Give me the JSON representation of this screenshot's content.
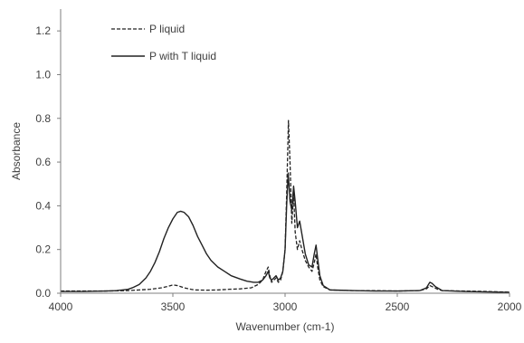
{
  "chart_data": {
    "type": "line",
    "title": "",
    "xlabel": "Wavenumber (cm-1)",
    "ylabel": "Absorbance",
    "xlim": [
      4000,
      2000
    ],
    "ylim": [
      0,
      1.3
    ],
    "x_reversed": true,
    "x_ticks": [
      4000,
      3500,
      3000,
      2500,
      2000
    ],
    "x_tick_labels": [
      "4000",
      "3500",
      "3000",
      "2500",
      "2000"
    ],
    "y_ticks": [
      0.0,
      0.2,
      0.4,
      0.6,
      0.8,
      1.0,
      1.2
    ],
    "y_tick_labels": [
      "0.0",
      "0.2",
      "0.4",
      "0.6",
      "0.8",
      "1.0",
      "1.2"
    ],
    "grid": false,
    "legend_position": "top-left",
    "series": [
      {
        "name": "P liquid",
        "style": "dashed",
        "color": "#222222",
        "points": [
          [
            4000,
            0.01
          ],
          [
            3900,
            0.01
          ],
          [
            3800,
            0.01
          ],
          [
            3700,
            0.012
          ],
          [
            3650,
            0.015
          ],
          [
            3600,
            0.018
          ],
          [
            3550,
            0.025
          ],
          [
            3520,
            0.032
          ],
          [
            3500,
            0.038
          ],
          [
            3480,
            0.035
          ],
          [
            3450,
            0.025
          ],
          [
            3420,
            0.018
          ],
          [
            3400,
            0.015
          ],
          [
            3350,
            0.014
          ],
          [
            3300,
            0.015
          ],
          [
            3250,
            0.018
          ],
          [
            3200,
            0.02
          ],
          [
            3150,
            0.025
          ],
          [
            3120,
            0.04
          ],
          [
            3100,
            0.06
          ],
          [
            3085,
            0.1
          ],
          [
            3075,
            0.12
          ],
          [
            3068,
            0.08
          ],
          [
            3060,
            0.05
          ],
          [
            3050,
            0.06
          ],
          [
            3040,
            0.07
          ],
          [
            3030,
            0.05
          ],
          [
            3020,
            0.06
          ],
          [
            3010,
            0.1
          ],
          [
            3000,
            0.2
          ],
          [
            2993,
            0.45
          ],
          [
            2985,
            0.79
          ],
          [
            2978,
            0.6
          ],
          [
            2970,
            0.32
          ],
          [
            2962,
            0.46
          ],
          [
            2955,
            0.28
          ],
          [
            2945,
            0.2
          ],
          [
            2935,
            0.24
          ],
          [
            2925,
            0.2
          ],
          [
            2910,
            0.15
          ],
          [
            2895,
            0.12
          ],
          [
            2880,
            0.1
          ],
          [
            2870,
            0.14
          ],
          [
            2862,
            0.18
          ],
          [
            2855,
            0.12
          ],
          [
            2845,
            0.06
          ],
          [
            2830,
            0.03
          ],
          [
            2800,
            0.015
          ],
          [
            2700,
            0.012
          ],
          [
            2600,
            0.012
          ],
          [
            2500,
            0.01
          ],
          [
            2400,
            0.012
          ],
          [
            2370,
            0.02
          ],
          [
            2355,
            0.035
          ],
          [
            2340,
            0.028
          ],
          [
            2320,
            0.018
          ],
          [
            2300,
            0.012
          ],
          [
            2200,
            0.01
          ],
          [
            2100,
            0.008
          ],
          [
            2000,
            0.005
          ]
        ]
      },
      {
        "name": "P with T liquid",
        "style": "solid",
        "color": "#222222",
        "points": [
          [
            4000,
            0.008
          ],
          [
            3900,
            0.008
          ],
          [
            3800,
            0.01
          ],
          [
            3750,
            0.012
          ],
          [
            3700,
            0.018
          ],
          [
            3680,
            0.025
          ],
          [
            3650,
            0.04
          ],
          [
            3620,
            0.07
          ],
          [
            3600,
            0.1
          ],
          [
            3580,
            0.14
          ],
          [
            3560,
            0.19
          ],
          [
            3540,
            0.25
          ],
          [
            3520,
            0.3
          ],
          [
            3500,
            0.34
          ],
          [
            3480,
            0.37
          ],
          [
            3465,
            0.375
          ],
          [
            3450,
            0.37
          ],
          [
            3430,
            0.35
          ],
          [
            3410,
            0.31
          ],
          [
            3390,
            0.26
          ],
          [
            3370,
            0.22
          ],
          [
            3350,
            0.18
          ],
          [
            3330,
            0.15
          ],
          [
            3300,
            0.12
          ],
          [
            3270,
            0.1
          ],
          [
            3240,
            0.08
          ],
          [
            3200,
            0.065
          ],
          [
            3170,
            0.055
          ],
          [
            3140,
            0.05
          ],
          [
            3120,
            0.05
          ],
          [
            3100,
            0.06
          ],
          [
            3085,
            0.08
          ],
          [
            3075,
            0.1
          ],
          [
            3068,
            0.07
          ],
          [
            3060,
            0.06
          ],
          [
            3050,
            0.07
          ],
          [
            3040,
            0.08
          ],
          [
            3030,
            0.06
          ],
          [
            3020,
            0.07
          ],
          [
            3010,
            0.1
          ],
          [
            3000,
            0.2
          ],
          [
            2993,
            0.4
          ],
          [
            2986,
            0.55
          ],
          [
            2978,
            0.42
          ],
          [
            2970,
            0.38
          ],
          [
            2962,
            0.49
          ],
          [
            2955,
            0.42
          ],
          [
            2945,
            0.3
          ],
          [
            2935,
            0.33
          ],
          [
            2925,
            0.27
          ],
          [
            2910,
            0.18
          ],
          [
            2895,
            0.13
          ],
          [
            2880,
            0.12
          ],
          [
            2870,
            0.18
          ],
          [
            2862,
            0.22
          ],
          [
            2855,
            0.16
          ],
          [
            2845,
            0.08
          ],
          [
            2830,
            0.035
          ],
          [
            2800,
            0.015
          ],
          [
            2700,
            0.012
          ],
          [
            2600,
            0.01
          ],
          [
            2500,
            0.01
          ],
          [
            2400,
            0.012
          ],
          [
            2370,
            0.025
          ],
          [
            2355,
            0.05
          ],
          [
            2345,
            0.045
          ],
          [
            2330,
            0.03
          ],
          [
            2310,
            0.018
          ],
          [
            2300,
            0.012
          ],
          [
            2200,
            0.008
          ],
          [
            2100,
            0.006
          ],
          [
            2000,
            0.004
          ]
        ]
      }
    ]
  }
}
